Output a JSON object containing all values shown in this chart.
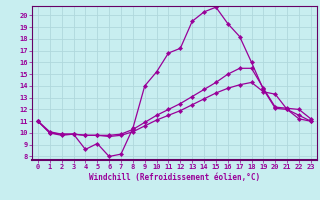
{
  "xlabel": "Windchill (Refroidissement éolien,°C)",
  "bg_color": "#c8eef0",
  "grid_color": "#b0d8dc",
  "line_color": "#990099",
  "spine_color": "#660066",
  "xlim": [
    -0.5,
    23.5
  ],
  "ylim": [
    7.7,
    20.8
  ],
  "yticks": [
    8,
    9,
    10,
    11,
    12,
    13,
    14,
    15,
    16,
    17,
    18,
    19,
    20
  ],
  "xticks": [
    0,
    1,
    2,
    3,
    4,
    5,
    6,
    7,
    8,
    9,
    10,
    11,
    12,
    13,
    14,
    15,
    16,
    17,
    18,
    19,
    20,
    21,
    22,
    23
  ],
  "line1_x": [
    0,
    1,
    2,
    3,
    4,
    5,
    6,
    7,
    8,
    9,
    10,
    11,
    12,
    13,
    14,
    15,
    16,
    17,
    18,
    19,
    20,
    21,
    22,
    23
  ],
  "line1_y": [
    11,
    10,
    9.8,
    9.9,
    8.6,
    9.1,
    8.0,
    8.2,
    10.4,
    14.0,
    15.2,
    16.8,
    17.2,
    19.5,
    20.3,
    20.7,
    19.3,
    18.2,
    16.0,
    13.7,
    12.1,
    12.0,
    11.5,
    11.0
  ],
  "line2_x": [
    0,
    1,
    2,
    3,
    4,
    5,
    6,
    7,
    8,
    9,
    10,
    11,
    12,
    13,
    14,
    15,
    16,
    17,
    18,
    19,
    20,
    21,
    22,
    23
  ],
  "line2_y": [
    11,
    10.1,
    9.9,
    9.9,
    9.8,
    9.8,
    9.8,
    9.9,
    10.3,
    10.9,
    11.5,
    12.0,
    12.5,
    13.1,
    13.7,
    14.3,
    15.0,
    15.5,
    15.5,
    13.8,
    12.2,
    12.1,
    12.0,
    11.2
  ],
  "line3_x": [
    0,
    1,
    2,
    3,
    4,
    5,
    6,
    7,
    8,
    9,
    10,
    11,
    12,
    13,
    14,
    15,
    16,
    17,
    18,
    19,
    20,
    21,
    22,
    23
  ],
  "line3_y": [
    11,
    10.0,
    9.9,
    9.9,
    9.8,
    9.8,
    9.7,
    9.8,
    10.1,
    10.6,
    11.1,
    11.5,
    11.9,
    12.4,
    12.9,
    13.4,
    13.8,
    14.1,
    14.3,
    13.5,
    13.3,
    12.0,
    11.2,
    11.0
  ],
  "marker": "D",
  "markersize": 2.2,
  "linewidth": 0.9,
  "tick_labelsize": 5.0,
  "xlabel_fontsize": 5.5
}
